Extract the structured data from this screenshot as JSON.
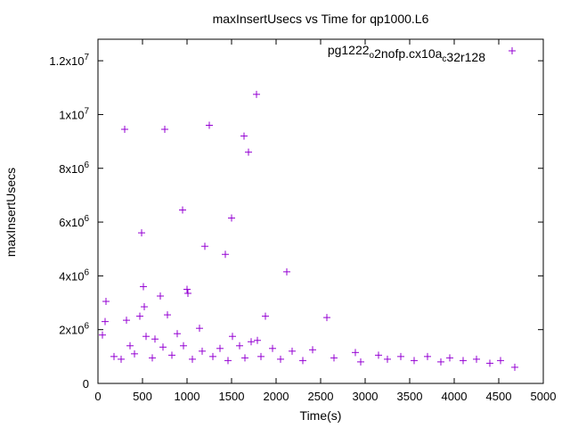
{
  "chart_data": {
    "type": "scatter",
    "title": "maxInsertUsecs vs Time for qp1000.L6",
    "xlabel": "Time(s)",
    "ylabel": "maxInsertUsecs",
    "xlim": [
      0,
      5000
    ],
    "ylim": [
      0,
      12800000
    ],
    "x_ticks": [
      0,
      500,
      1000,
      1500,
      2000,
      2500,
      3000,
      3500,
      4000,
      4500,
      5000
    ],
    "x_tick_labels": [
      "0",
      "500",
      "1000",
      "1500",
      "2000",
      "2500",
      "3000",
      "3500",
      "4000",
      "4500",
      "5000"
    ],
    "y_ticks": [
      0,
      2000000,
      4000000,
      6000000,
      8000000,
      10000000,
      12000000
    ],
    "y_tick_labels": [
      {
        "mantissa": "0",
        "exp": ""
      },
      {
        "mantissa": "2x10",
        "exp": "6"
      },
      {
        "mantissa": "4x10",
        "exp": "6"
      },
      {
        "mantissa": "6x10",
        "exp": "6"
      },
      {
        "mantissa": "8x10",
        "exp": "6"
      },
      {
        "mantissa": "1x10",
        "exp": "7"
      },
      {
        "mantissa": "1.2x10",
        "exp": "7"
      }
    ],
    "grid": false,
    "legend_position": "top-right",
    "series": [
      {
        "name_parts": [
          {
            "text": "pg1222",
            "sub": false
          },
          {
            "text": "o",
            "sub": true
          },
          {
            "text": "2nofp.cx10a",
            "sub": false
          },
          {
            "text": "c",
            "sub": true
          },
          {
            "text": "32r128",
            "sub": false
          }
        ],
        "color": "#9400d3",
        "marker": "plus",
        "points": [
          [
            300,
            9450000
          ],
          [
            750,
            9450000
          ],
          [
            1250,
            9600000
          ],
          [
            1780,
            10750000
          ],
          [
            1640,
            9200000
          ],
          [
            1690,
            8600000
          ],
          [
            950,
            6450000
          ],
          [
            1500,
            6150000
          ],
          [
            490,
            5600000
          ],
          [
            1200,
            5100000
          ],
          [
            1430,
            4800000
          ],
          [
            2120,
            4150000
          ],
          [
            510,
            3600000
          ],
          [
            1000,
            3500000
          ],
          [
            1010,
            3350000
          ],
          [
            700,
            3250000
          ],
          [
            90,
            3050000
          ],
          [
            520,
            2850000
          ],
          [
            780,
            2550000
          ],
          [
            470,
            2500000
          ],
          [
            1880,
            2500000
          ],
          [
            2570,
            2450000
          ],
          [
            320,
            2350000
          ],
          [
            80,
            2300000
          ],
          [
            1140,
            2050000
          ],
          [
            50,
            1800000
          ],
          [
            540,
            1750000
          ],
          [
            640,
            1650000
          ],
          [
            890,
            1850000
          ],
          [
            1510,
            1750000
          ],
          [
            1720,
            1550000
          ],
          [
            1790,
            1600000
          ],
          [
            360,
            1400000
          ],
          [
            730,
            1350000
          ],
          [
            960,
            1400000
          ],
          [
            1170,
            1200000
          ],
          [
            1370,
            1300000
          ],
          [
            1590,
            1400000
          ],
          [
            1960,
            1300000
          ],
          [
            2180,
            1200000
          ],
          [
            2410,
            1250000
          ],
          [
            2890,
            1150000
          ],
          [
            3150,
            1050000
          ],
          [
            3400,
            1000000
          ],
          [
            3700,
            1000000
          ],
          [
            3950,
            950000
          ],
          [
            4250,
            900000
          ],
          [
            4520,
            850000
          ],
          [
            180,
            1000000
          ],
          [
            260,
            900000
          ],
          [
            410,
            1100000
          ],
          [
            610,
            950000
          ],
          [
            830,
            1050000
          ],
          [
            1060,
            900000
          ],
          [
            1290,
            1000000
          ],
          [
            1460,
            850000
          ],
          [
            1650,
            950000
          ],
          [
            1830,
            1000000
          ],
          [
            2050,
            900000
          ],
          [
            2300,
            850000
          ],
          [
            2650,
            950000
          ],
          [
            2950,
            800000
          ],
          [
            3250,
            900000
          ],
          [
            3550,
            850000
          ],
          [
            3850,
            800000
          ],
          [
            4100,
            850000
          ],
          [
            4400,
            750000
          ],
          [
            4680,
            600000
          ]
        ]
      }
    ]
  }
}
